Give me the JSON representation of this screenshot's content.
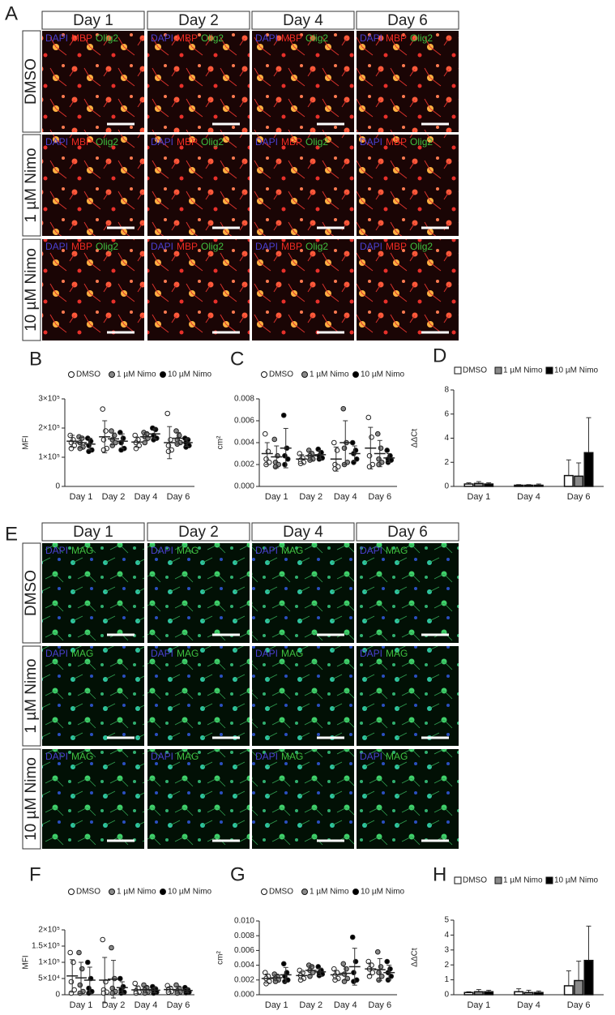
{
  "figure": {
    "panel_A": {
      "letter": "A",
      "columns": [
        "Day 1",
        "Day 2",
        "Day 4",
        "Day 6"
      ],
      "rows": [
        "DMSO",
        "1 µM Nimo",
        "10 µM Nimo"
      ],
      "stains": [
        {
          "text": "DAPI",
          "color": "#4a3fd0"
        },
        {
          "text": "MBP",
          "color": "#ee2a22"
        },
        {
          "text": "Olig2",
          "color": "#3fbf3f"
        }
      ]
    },
    "panel_E": {
      "letter": "E",
      "columns": [
        "Day 1",
        "Day 2",
        "Day 4",
        "Day 6"
      ],
      "rows": [
        "DMSO",
        "1 µM Nimo",
        "10 µM Nimo"
      ],
      "stains": [
        {
          "text": "DAPI",
          "color": "#4a3fd0"
        },
        {
          "text": "MAG",
          "color": "#3fbf3f"
        }
      ]
    }
  },
  "chart_data": [
    {
      "type": "dotplot",
      "panel": "B",
      "ylabel": "MFI",
      "categories": [
        "Day 1",
        "Day 2",
        "Day 4",
        "Day 6"
      ],
      "ylim": [
        0,
        300000
      ],
      "yticks": [
        0,
        {
          "value": 100000,
          "label": "1×10⁵"
        },
        {
          "value": 200000,
          "label": "2×10⁵"
        },
        {
          "value": 300000,
          "label": "3×10⁵"
        }
      ],
      "series": [
        {
          "name": "DMSO",
          "color": "#ffffff",
          "values": [
            [
              175000,
              160000,
              150000,
              140000,
              130000
            ],
            [
              265000,
              190000,
              160000,
              130000,
              125000
            ],
            [
              175000,
              160000,
              150000,
              140000,
              130000
            ],
            [
              250000,
              160000,
              140000,
              125000,
              120000
            ]
          ],
          "means": [
            155000,
            170000,
            152000,
            150000
          ],
          "errors": [
            20000,
            55000,
            17000,
            55000
          ]
        },
        {
          "name": "1 µM Nimo",
          "color": "#8a8a8a",
          "values": [
            [
              170000,
              165000,
              150000,
              135000,
              130000
            ],
            [
              190000,
              175000,
              160000,
              150000,
              140000
            ],
            [
              185000,
              180000,
              170000,
              165000,
              150000
            ],
            [
              190000,
              175000,
              160000,
              150000,
              145000
            ]
          ],
          "means": [
            150000,
            163000,
            170000,
            165000
          ],
          "errors": [
            18000,
            20000,
            14000,
            20000
          ]
        },
        {
          "name": "10 µM Nimo",
          "color": "#000000",
          "values": [
            [
              165000,
              155000,
              140000,
              125000,
              120000
            ],
            [
              185000,
              165000,
              150000,
              130000,
              125000
            ],
            [
              200000,
              195000,
              175000,
              165000,
              160000
            ],
            [
              165000,
              160000,
              150000,
              140000,
              135000
            ]
          ],
          "means": [
            145000,
            155000,
            180000,
            150000
          ],
          "errors": [
            20000,
            25000,
            17000,
            13000
          ]
        }
      ]
    },
    {
      "type": "dotplot",
      "panel": "C",
      "ylabel": "cm²",
      "categories": [
        "Day 1",
        "Day 2",
        "Day 4",
        "Day 6"
      ],
      "ylim": [
        0,
        0.008
      ],
      "yticks": [
        {
          "value": 0,
          "label": "0.000"
        },
        0.002,
        0.004,
        0.006,
        0.008
      ],
      "series": [
        {
          "name": "DMSO",
          "color": "#ffffff",
          "values": [
            [
              0.0048,
              0.0032,
              0.0025,
              0.0022,
              0.002
            ],
            [
              0.003,
              0.0026,
              0.0024,
              0.0022,
              0.0021
            ],
            [
              0.004,
              0.0033,
              0.002,
              0.0018,
              0.0016
            ],
            [
              0.0063,
              0.0045,
              0.0028,
              0.002,
              0.0018
            ]
          ],
          "means": [
            0.003,
            0.0025,
            0.0025,
            0.0035
          ],
          "errors": [
            0.001,
            0.0004,
            0.0011,
            0.0019
          ]
        },
        {
          "name": "1 µM Nimo",
          "color": "#8a8a8a",
          "values": [
            [
              0.0043,
              0.0028,
              0.0022,
              0.002,
              0.0018
            ],
            [
              0.0033,
              0.003,
              0.0028,
              0.0025,
              0.0024
            ],
            [
              0.0071,
              0.004,
              0.0035,
              0.0022,
              0.002
            ],
            [
              0.0048,
              0.0035,
              0.0025,
              0.0022,
              0.002
            ]
          ],
          "means": [
            0.0027,
            0.0028,
            0.004,
            0.003
          ],
          "errors": [
            0.001,
            0.0004,
            0.002,
            0.0012
          ]
        },
        {
          "name": "10 µM Nimo",
          "color": "#000000",
          "values": [
            [
              0.0065,
              0.0035,
              0.0028,
              0.0025,
              0.002
            ],
            [
              0.0034,
              0.0031,
              0.0028,
              0.0026,
              0.0025
            ],
            [
              0.004,
              0.0033,
              0.003,
              0.0025,
              0.0022
            ],
            [
              0.0033,
              0.0028,
              0.0025,
              0.0024,
              0.0022
            ]
          ],
          "means": [
            0.0035,
            0.0029,
            0.003,
            0.0026
          ],
          "errors": [
            0.0018,
            0.0004,
            0.0007,
            0.0004
          ]
        }
      ]
    },
    {
      "type": "bar",
      "panel": "D",
      "ylabel": "ΔΔCt",
      "categories": [
        "Day 1",
        "Day 4",
        "Day 6"
      ],
      "ylim": [
        0,
        8
      ],
      "yticks": [
        0,
        2,
        4,
        6,
        8
      ],
      "series": [
        {
          "name": "DMSO",
          "color": "#ffffff",
          "values": [
            0.2,
            0.1,
            0.9
          ],
          "errors": [
            0.1,
            0.05,
            1.3
          ]
        },
        {
          "name": "1 µM Nimo",
          "color": "#8a8a8a",
          "values": [
            0.25,
            0.1,
            0.85
          ],
          "errors": [
            0.15,
            0.05,
            1.1
          ]
        },
        {
          "name": "10 µM Nimo",
          "color": "#000000",
          "values": [
            0.2,
            0.1,
            2.8
          ],
          "errors": [
            0.1,
            0.1,
            2.9
          ]
        }
      ]
    },
    {
      "type": "dotplot",
      "panel": "F",
      "ylabel": "MFI",
      "categories": [
        "Day 1",
        "Day 2",
        "Day 4",
        "Day 6"
      ],
      "ylim": [
        0,
        200000
      ],
      "yticks": [
        0,
        {
          "value": 50000,
          "label": "5×10⁴"
        },
        {
          "value": 100000,
          "label": "1×10⁵"
        },
        {
          "value": 150000,
          "label": "1.5×10⁵"
        },
        {
          "value": 200000,
          "label": "2×10⁵"
        }
      ],
      "series": [
        {
          "name": "DMSO",
          "color": "#ffffff",
          "values": [
            [
              130000,
              100000,
              40000,
              15000,
              5000
            ],
            [
              170000,
              40000,
              15000,
              8000,
              5000
            ],
            [
              35000,
              20000,
              12000,
              8000,
              5000
            ],
            [
              28000,
              20000,
              15000,
              10000,
              8000
            ]
          ],
          "means": [
            58000,
            45000,
            15000,
            16000
          ],
          "errors": [
            50000,
            70000,
            12000,
            8000
          ]
        },
        {
          "name": "1 µM Nimo",
          "color": "#8a8a8a",
          "values": [
            [
              130000,
              80000,
              30000,
              10000,
              5000
            ],
            [
              145000,
              50000,
              20000,
              10000,
              5000
            ],
            [
              30000,
              22000,
              15000,
              8000,
              5000
            ],
            [
              30000,
              20000,
              12000,
              8000,
              5000
            ]
          ],
          "means": [
            52000,
            48000,
            16000,
            15000
          ],
          "errors": [
            48000,
            58000,
            10000,
            10000
          ]
        },
        {
          "name": "10 µM Nimo",
          "color": "#000000",
          "values": [
            [
              100000,
              50000,
              20000,
              10000,
              5000
            ],
            [
              50000,
              25000,
              15000,
              8000,
              5000
            ],
            [
              25000,
              18000,
              12000,
              8000,
              5000
            ],
            [
              22000,
              15000,
              12000,
              8000,
              6000
            ]
          ],
          "means": [
            45000,
            22000,
            14000,
            13000
          ],
          "errors": [
            40000,
            18000,
            8000,
            6000
          ]
        }
      ]
    },
    {
      "type": "dotplot",
      "panel": "G",
      "ylabel": "cm²",
      "categories": [
        "Day 1",
        "Day 2",
        "Day 4",
        "Day 6"
      ],
      "ylim": [
        0,
        0.01
      ],
      "yticks": [
        {
          "value": 0,
          "label": "0.000"
        },
        0.002,
        0.004,
        0.006,
        0.008,
        {
          "value": 0.01,
          "label": "0.010"
        }
      ],
      "series": [
        {
          "name": "DMSO",
          "color": "#ffffff",
          "values": [
            [
              0.003,
              0.0025,
              0.0022,
              0.0018,
              0.0015
            ],
            [
              0.0033,
              0.003,
              0.0026,
              0.0022,
              0.002
            ],
            [
              0.0035,
              0.003,
              0.0026,
              0.0022,
              0.002
            ],
            [
              0.0045,
              0.004,
              0.0035,
              0.003,
              0.0025
            ]
          ],
          "means": [
            0.0022,
            0.0026,
            0.0027,
            0.0035
          ],
          "errors": [
            0.0006,
            0.0005,
            0.0006,
            0.0008
          ]
        },
        {
          "name": "1 µM Nimo",
          "color": "#8a8a8a",
          "values": [
            [
              0.0028,
              0.0025,
              0.0022,
              0.002,
              0.0018
            ],
            [
              0.004,
              0.0038,
              0.0033,
              0.003,
              0.0025
            ],
            [
              0.0042,
              0.0035,
              0.0028,
              0.0022,
              0.0018
            ],
            [
              0.0058,
              0.0038,
              0.003,
              0.0025,
              0.002
            ]
          ],
          "means": [
            0.0023,
            0.0033,
            0.0029,
            0.0034
          ],
          "errors": [
            0.0004,
            0.0006,
            0.0009,
            0.0015
          ]
        },
        {
          "name": "10 µM Nimo",
          "color": "#000000",
          "values": [
            [
              0.0042,
              0.003,
              0.0025,
              0.002,
              0.0018
            ],
            [
              0.0038,
              0.0033,
              0.003,
              0.0028,
              0.0026
            ],
            [
              0.0078,
              0.0045,
              0.003,
              0.002,
              0.0018
            ],
            [
              0.0045,
              0.0035,
              0.003,
              0.0025,
              0.002
            ]
          ],
          "means": [
            0.0027,
            0.0031,
            0.0038,
            0.003
          ],
          "errors": [
            0.001,
            0.0005,
            0.0025,
            0.001
          ]
        }
      ]
    },
    {
      "type": "bar",
      "panel": "H",
      "ylabel": "ΔΔCt",
      "categories": [
        "Day 1",
        "Day 4",
        "Day 6"
      ],
      "ylim": [
        0,
        5
      ],
      "yticks": [
        0,
        1,
        2,
        3,
        4,
        5
      ],
      "series": [
        {
          "name": "DMSO",
          "color": "#ffffff",
          "values": [
            0.15,
            0.2,
            0.6
          ],
          "errors": [
            0.05,
            0.2,
            1.0
          ]
        },
        {
          "name": "1 µM Nimo",
          "color": "#8a8a8a",
          "values": [
            0.2,
            0.15,
            0.95
          ],
          "errors": [
            0.15,
            0.15,
            1.3
          ]
        },
        {
          "name": "10 µM Nimo",
          "color": "#000000",
          "values": [
            0.2,
            0.15,
            2.3
          ],
          "errors": [
            0.1,
            0.1,
            2.3
          ]
        }
      ]
    }
  ]
}
